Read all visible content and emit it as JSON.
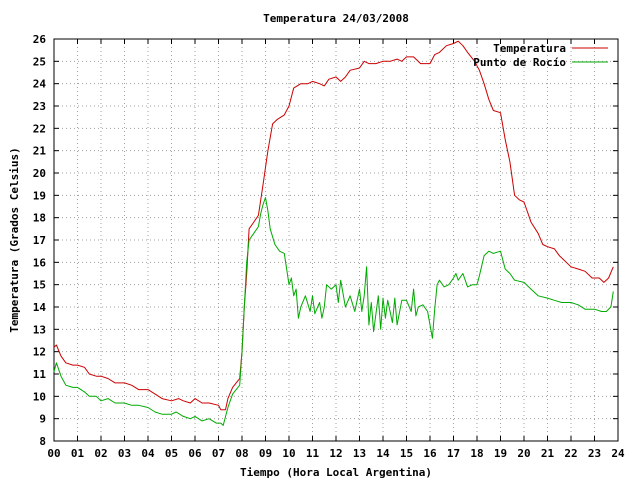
{
  "chart_data": {
    "type": "line",
    "title": "Temperatura 24/03/2008",
    "xlabel": "Tiempo (Hora Local Argentina)",
    "ylabel": "Temperatura (Grados Celsius)",
    "xlim": [
      0,
      24
    ],
    "ylim": [
      8,
      26
    ],
    "x_ticks": [
      "00",
      "01",
      "02",
      "03",
      "04",
      "05",
      "06",
      "07",
      "08",
      "09",
      "10",
      "11",
      "12",
      "13",
      "14",
      "15",
      "16",
      "17",
      "18",
      "19",
      "20",
      "21",
      "22",
      "23",
      "24"
    ],
    "y_ticks": [
      "8",
      "9",
      "10",
      "11",
      "12",
      "13",
      "14",
      "15",
      "16",
      "17",
      "18",
      "19",
      "20",
      "21",
      "22",
      "23",
      "24",
      "25",
      "26"
    ],
    "grid": true,
    "legend_position": "top-right",
    "series": [
      {
        "name": "Temperatura",
        "color": "#cc0000",
        "points": [
          [
            0.0,
            12.2
          ],
          [
            0.1,
            12.3
          ],
          [
            0.3,
            11.8
          ],
          [
            0.5,
            11.5
          ],
          [
            0.8,
            11.4
          ],
          [
            1.0,
            11.4
          ],
          [
            1.3,
            11.3
          ],
          [
            1.5,
            11.0
          ],
          [
            1.8,
            10.9
          ],
          [
            2.0,
            10.9
          ],
          [
            2.3,
            10.8
          ],
          [
            2.6,
            10.6
          ],
          [
            3.0,
            10.6
          ],
          [
            3.3,
            10.5
          ],
          [
            3.6,
            10.3
          ],
          [
            4.0,
            10.3
          ],
          [
            4.3,
            10.1
          ],
          [
            4.6,
            9.9
          ],
          [
            5.0,
            9.8
          ],
          [
            5.3,
            9.9
          ],
          [
            5.5,
            9.8
          ],
          [
            5.8,
            9.7
          ],
          [
            6.0,
            9.9
          ],
          [
            6.3,
            9.7
          ],
          [
            6.6,
            9.7
          ],
          [
            7.0,
            9.6
          ],
          [
            7.1,
            9.4
          ],
          [
            7.3,
            9.4
          ],
          [
            7.4,
            9.9
          ],
          [
            7.6,
            10.4
          ],
          [
            7.9,
            10.8
          ],
          [
            8.0,
            12.0
          ],
          [
            8.1,
            14.0
          ],
          [
            8.2,
            15.5
          ],
          [
            8.3,
            17.5
          ],
          [
            8.5,
            17.8
          ],
          [
            8.7,
            18.1
          ],
          [
            8.9,
            19.5
          ],
          [
            9.1,
            21.0
          ],
          [
            9.3,
            22.2
          ],
          [
            9.5,
            22.4
          ],
          [
            9.8,
            22.6
          ],
          [
            10.0,
            23.0
          ],
          [
            10.2,
            23.8
          ],
          [
            10.5,
            24.0
          ],
          [
            10.8,
            24.0
          ],
          [
            11.0,
            24.1
          ],
          [
            11.3,
            24.0
          ],
          [
            11.5,
            23.9
          ],
          [
            11.7,
            24.2
          ],
          [
            12.0,
            24.3
          ],
          [
            12.2,
            24.1
          ],
          [
            12.4,
            24.3
          ],
          [
            12.6,
            24.6
          ],
          [
            13.0,
            24.7
          ],
          [
            13.2,
            25.0
          ],
          [
            13.4,
            24.9
          ],
          [
            13.7,
            24.9
          ],
          [
            14.0,
            25.0
          ],
          [
            14.3,
            25.0
          ],
          [
            14.6,
            25.1
          ],
          [
            14.8,
            25.0
          ],
          [
            15.0,
            25.2
          ],
          [
            15.3,
            25.2
          ],
          [
            15.6,
            24.9
          ],
          [
            16.0,
            24.9
          ],
          [
            16.2,
            25.3
          ],
          [
            16.4,
            25.4
          ],
          [
            16.7,
            25.7
          ],
          [
            17.0,
            25.8
          ],
          [
            17.2,
            25.9
          ],
          [
            17.4,
            25.7
          ],
          [
            17.6,
            25.4
          ],
          [
            17.9,
            25.0
          ],
          [
            18.1,
            24.6
          ],
          [
            18.3,
            24.0
          ],
          [
            18.5,
            23.3
          ],
          [
            18.7,
            22.8
          ],
          [
            19.0,
            22.7
          ],
          [
            19.2,
            21.5
          ],
          [
            19.4,
            20.5
          ],
          [
            19.6,
            19.0
          ],
          [
            19.8,
            18.8
          ],
          [
            20.0,
            18.7
          ],
          [
            20.3,
            17.8
          ],
          [
            20.6,
            17.3
          ],
          [
            20.8,
            16.8
          ],
          [
            21.0,
            16.7
          ],
          [
            21.3,
            16.6
          ],
          [
            21.5,
            16.3
          ],
          [
            21.8,
            16.0
          ],
          [
            22.0,
            15.8
          ],
          [
            22.3,
            15.7
          ],
          [
            22.6,
            15.6
          ],
          [
            22.9,
            15.3
          ],
          [
            23.2,
            15.3
          ],
          [
            23.4,
            15.1
          ],
          [
            23.6,
            15.3
          ],
          [
            23.8,
            15.8
          ]
        ]
      },
      {
        "name": "Punto de Rocío",
        "color": "#00aa00",
        "points": [
          [
            0.0,
            11.1
          ],
          [
            0.1,
            11.5
          ],
          [
            0.3,
            10.9
          ],
          [
            0.5,
            10.5
          ],
          [
            0.8,
            10.4
          ],
          [
            1.0,
            10.4
          ],
          [
            1.3,
            10.2
          ],
          [
            1.5,
            10.0
          ],
          [
            1.8,
            10.0
          ],
          [
            2.0,
            9.8
          ],
          [
            2.3,
            9.9
          ],
          [
            2.6,
            9.7
          ],
          [
            3.0,
            9.7
          ],
          [
            3.3,
            9.6
          ],
          [
            3.6,
            9.6
          ],
          [
            4.0,
            9.5
          ],
          [
            4.3,
            9.3
          ],
          [
            4.6,
            9.2
          ],
          [
            5.0,
            9.2
          ],
          [
            5.2,
            9.3
          ],
          [
            5.5,
            9.1
          ],
          [
            5.8,
            9.0
          ],
          [
            6.0,
            9.1
          ],
          [
            6.3,
            8.9
          ],
          [
            6.6,
            9.0
          ],
          [
            6.9,
            8.8
          ],
          [
            7.1,
            8.8
          ],
          [
            7.2,
            8.7
          ],
          [
            7.4,
            9.5
          ],
          [
            7.6,
            10.1
          ],
          [
            7.9,
            10.5
          ],
          [
            8.0,
            12.0
          ],
          [
            8.1,
            14.0
          ],
          [
            8.2,
            16.0
          ],
          [
            8.3,
            17.0
          ],
          [
            8.5,
            17.3
          ],
          [
            8.7,
            17.6
          ],
          [
            8.8,
            18.2
          ],
          [
            8.9,
            18.6
          ],
          [
            9.0,
            18.9
          ],
          [
            9.1,
            18.3
          ],
          [
            9.2,
            17.5
          ],
          [
            9.4,
            16.8
          ],
          [
            9.6,
            16.5
          ],
          [
            9.8,
            16.4
          ],
          [
            10.0,
            15.0
          ],
          [
            10.1,
            15.3
          ],
          [
            10.2,
            14.5
          ],
          [
            10.3,
            14.8
          ],
          [
            10.4,
            13.5
          ],
          [
            10.5,
            14.0
          ],
          [
            10.7,
            14.5
          ],
          [
            10.9,
            13.8
          ],
          [
            11.0,
            14.5
          ],
          [
            11.1,
            13.7
          ],
          [
            11.3,
            14.2
          ],
          [
            11.4,
            13.5
          ],
          [
            11.5,
            14.0
          ],
          [
            11.6,
            15.0
          ],
          [
            11.8,
            14.8
          ],
          [
            12.0,
            15.0
          ],
          [
            12.1,
            14.2
          ],
          [
            12.2,
            15.2
          ],
          [
            12.4,
            14.0
          ],
          [
            12.6,
            14.5
          ],
          [
            12.8,
            13.8
          ],
          [
            13.0,
            14.8
          ],
          [
            13.1,
            13.8
          ],
          [
            13.2,
            14.5
          ],
          [
            13.3,
            15.8
          ],
          [
            13.4,
            13.2
          ],
          [
            13.5,
            14.2
          ],
          [
            13.6,
            12.9
          ],
          [
            13.8,
            14.5
          ],
          [
            13.9,
            13.0
          ],
          [
            14.0,
            14.4
          ],
          [
            14.1,
            13.5
          ],
          [
            14.2,
            14.3
          ],
          [
            14.4,
            13.3
          ],
          [
            14.5,
            14.4
          ],
          [
            14.6,
            13.2
          ],
          [
            14.8,
            14.3
          ],
          [
            15.0,
            14.3
          ],
          [
            15.2,
            13.8
          ],
          [
            15.3,
            14.8
          ],
          [
            15.4,
            13.6
          ],
          [
            15.5,
            14.0
          ],
          [
            15.7,
            14.1
          ],
          [
            15.9,
            13.8
          ],
          [
            16.0,
            13.2
          ],
          [
            16.1,
            12.6
          ],
          [
            16.2,
            13.9
          ],
          [
            16.3,
            15.0
          ],
          [
            16.4,
            15.2
          ],
          [
            16.6,
            14.9
          ],
          [
            16.8,
            15.0
          ],
          [
            17.0,
            15.3
          ],
          [
            17.1,
            15.5
          ],
          [
            17.2,
            15.2
          ],
          [
            17.4,
            15.5
          ],
          [
            17.6,
            14.9
          ],
          [
            17.8,
            15.0
          ],
          [
            18.0,
            15.0
          ],
          [
            18.1,
            15.4
          ],
          [
            18.3,
            16.3
          ],
          [
            18.5,
            16.5
          ],
          [
            18.7,
            16.4
          ],
          [
            19.0,
            16.5
          ],
          [
            19.2,
            15.7
          ],
          [
            19.4,
            15.5
          ],
          [
            19.6,
            15.2
          ],
          [
            20.0,
            15.1
          ],
          [
            20.3,
            14.8
          ],
          [
            20.6,
            14.5
          ],
          [
            21.0,
            14.4
          ],
          [
            21.3,
            14.3
          ],
          [
            21.6,
            14.2
          ],
          [
            22.0,
            14.2
          ],
          [
            22.3,
            14.1
          ],
          [
            22.6,
            13.9
          ],
          [
            23.0,
            13.9
          ],
          [
            23.3,
            13.8
          ],
          [
            23.5,
            13.8
          ],
          [
            23.7,
            14.0
          ],
          [
            23.8,
            14.7
          ]
        ]
      }
    ]
  }
}
